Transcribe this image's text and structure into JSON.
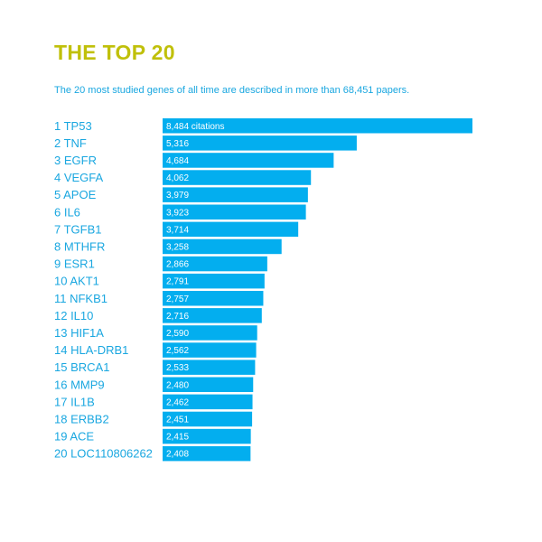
{
  "title": "THE TOP 20",
  "subtitle": "The 20 most studied genes of all time are described in more than 68,451 papers.",
  "colors": {
    "title": "#c0c00a",
    "accent": "#03aeef",
    "text": "#1aa7e0"
  },
  "chart_data": {
    "type": "bar",
    "orientation": "horizontal",
    "categories": [
      "1 TP53",
      "2 TNF",
      "3 EGFR",
      "4 VEGFA",
      "5 APOE",
      "6 IL6",
      "7 TGFB1",
      "8 MTHFR",
      "9 ESR1",
      "10 AKT1",
      "11 NFKB1",
      "12 IL10",
      "13 HIF1A",
      "14 HLA-DRB1",
      "15 BRCA1",
      "16 MMP9",
      "17 IL1B",
      "18 ERBB2",
      "19 ACE",
      "20 LOC110806262"
    ],
    "values": [
      8484,
      5316,
      4684,
      4062,
      3979,
      3923,
      3714,
      3258,
      2866,
      2791,
      2757,
      2716,
      2590,
      2562,
      2533,
      2480,
      2462,
      2451,
      2415,
      2408
    ],
    "value_labels": [
      "8,484 citations",
      "5,316",
      "4,684",
      "4,062",
      "3,979",
      "3,923",
      "3,714",
      "3,258",
      "2,866",
      "2,791",
      "2,757",
      "2,716",
      "2,590",
      "2,562",
      "2,533",
      "2,480",
      "2,462",
      "2,451",
      "2,415",
      "2,408"
    ],
    "xlim": [
      0,
      8484
    ],
    "grid": false,
    "legend": "none"
  }
}
